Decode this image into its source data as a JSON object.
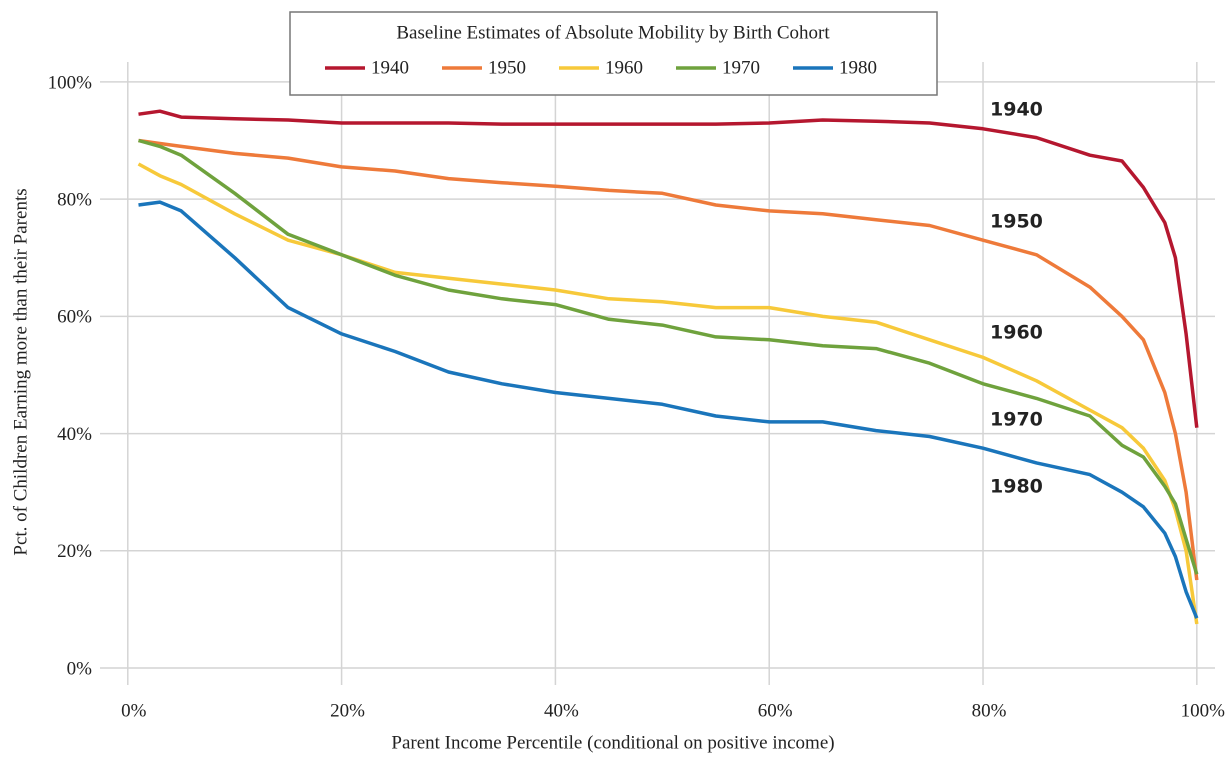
{
  "chart_data": {
    "type": "line",
    "title": "Baseline Estimates of Absolute Mobility by Birth Cohort",
    "x_label": "Parent Income Percentile (conditional on positive income)",
    "y_label": "Pct. of Children Earning more than their Parents",
    "x": [
      1,
      3,
      5,
      10,
      15,
      20,
      25,
      30,
      35,
      40,
      45,
      50,
      55,
      60,
      65,
      70,
      75,
      80,
      85,
      90,
      93,
      95,
      97,
      98,
      99,
      100
    ],
    "series": [
      {
        "name": "1940",
        "color": "#b5172f",
        "values": [
          94.5,
          95,
          94,
          93.7,
          93.5,
          93,
          93,
          93,
          92.8,
          92.8,
          92.8,
          92.8,
          92.8,
          93,
          93.5,
          93.3,
          93,
          92,
          90.5,
          87.5,
          86.5,
          82,
          76,
          70,
          57,
          41
        ]
      },
      {
        "name": "1950",
        "color": "#ee7a3a",
        "values": [
          90,
          89.5,
          89,
          87.8,
          87,
          85.5,
          84.8,
          83.5,
          82.8,
          82.2,
          81.5,
          81,
          79,
          78,
          77.5,
          76.5,
          75.5,
          73,
          70.5,
          65,
          60,
          56,
          47,
          40,
          30,
          15
        ]
      },
      {
        "name": "1960",
        "color": "#f7c93a",
        "values": [
          86,
          84,
          82.5,
          77.5,
          73,
          70.5,
          67.5,
          66.5,
          65.5,
          64.5,
          63,
          62.5,
          61.5,
          61.5,
          60,
          59,
          56,
          53,
          49,
          44,
          41,
          37.5,
          32,
          27,
          20,
          7.5
        ]
      },
      {
        "name": "1970",
        "color": "#6fa23d",
        "values": [
          90,
          89,
          87.5,
          81,
          74,
          70.5,
          67,
          64.5,
          63,
          62,
          59.5,
          58.5,
          56.5,
          56,
          55,
          54.5,
          52,
          48.5,
          46,
          43,
          38,
          36,
          31,
          28,
          22,
          16
        ]
      },
      {
        "name": "1980",
        "color": "#1a75bb",
        "values": [
          79,
          79.5,
          78,
          70,
          61.5,
          57,
          54,
          50.5,
          48.5,
          47,
          46,
          45,
          43,
          42,
          42,
          40.5,
          39.5,
          37.5,
          35,
          33,
          30,
          27.5,
          23,
          19,
          13,
          8.5
        ]
      }
    ],
    "xlim": [
      -2.6,
      101.7
    ],
    "ylim": [
      -2.9,
      103.4
    ],
    "xticks": [
      {
        "value": 0,
        "label": "0%"
      },
      {
        "value": 20,
        "label": "20%"
      },
      {
        "value": 40,
        "label": "40%"
      },
      {
        "value": 60,
        "label": "60%"
      },
      {
        "value": 80,
        "label": "80%"
      },
      {
        "value": 100,
        "label": "100%"
      }
    ],
    "yticks": [
      {
        "value": 0,
        "label": "0%"
      },
      {
        "value": 20,
        "label": "20%"
      },
      {
        "value": 40,
        "label": "40%"
      },
      {
        "value": 60,
        "label": "60%"
      },
      {
        "value": 80,
        "label": "80%"
      },
      {
        "value": 100,
        "label": "100%"
      }
    ],
    "grid": true
  }
}
